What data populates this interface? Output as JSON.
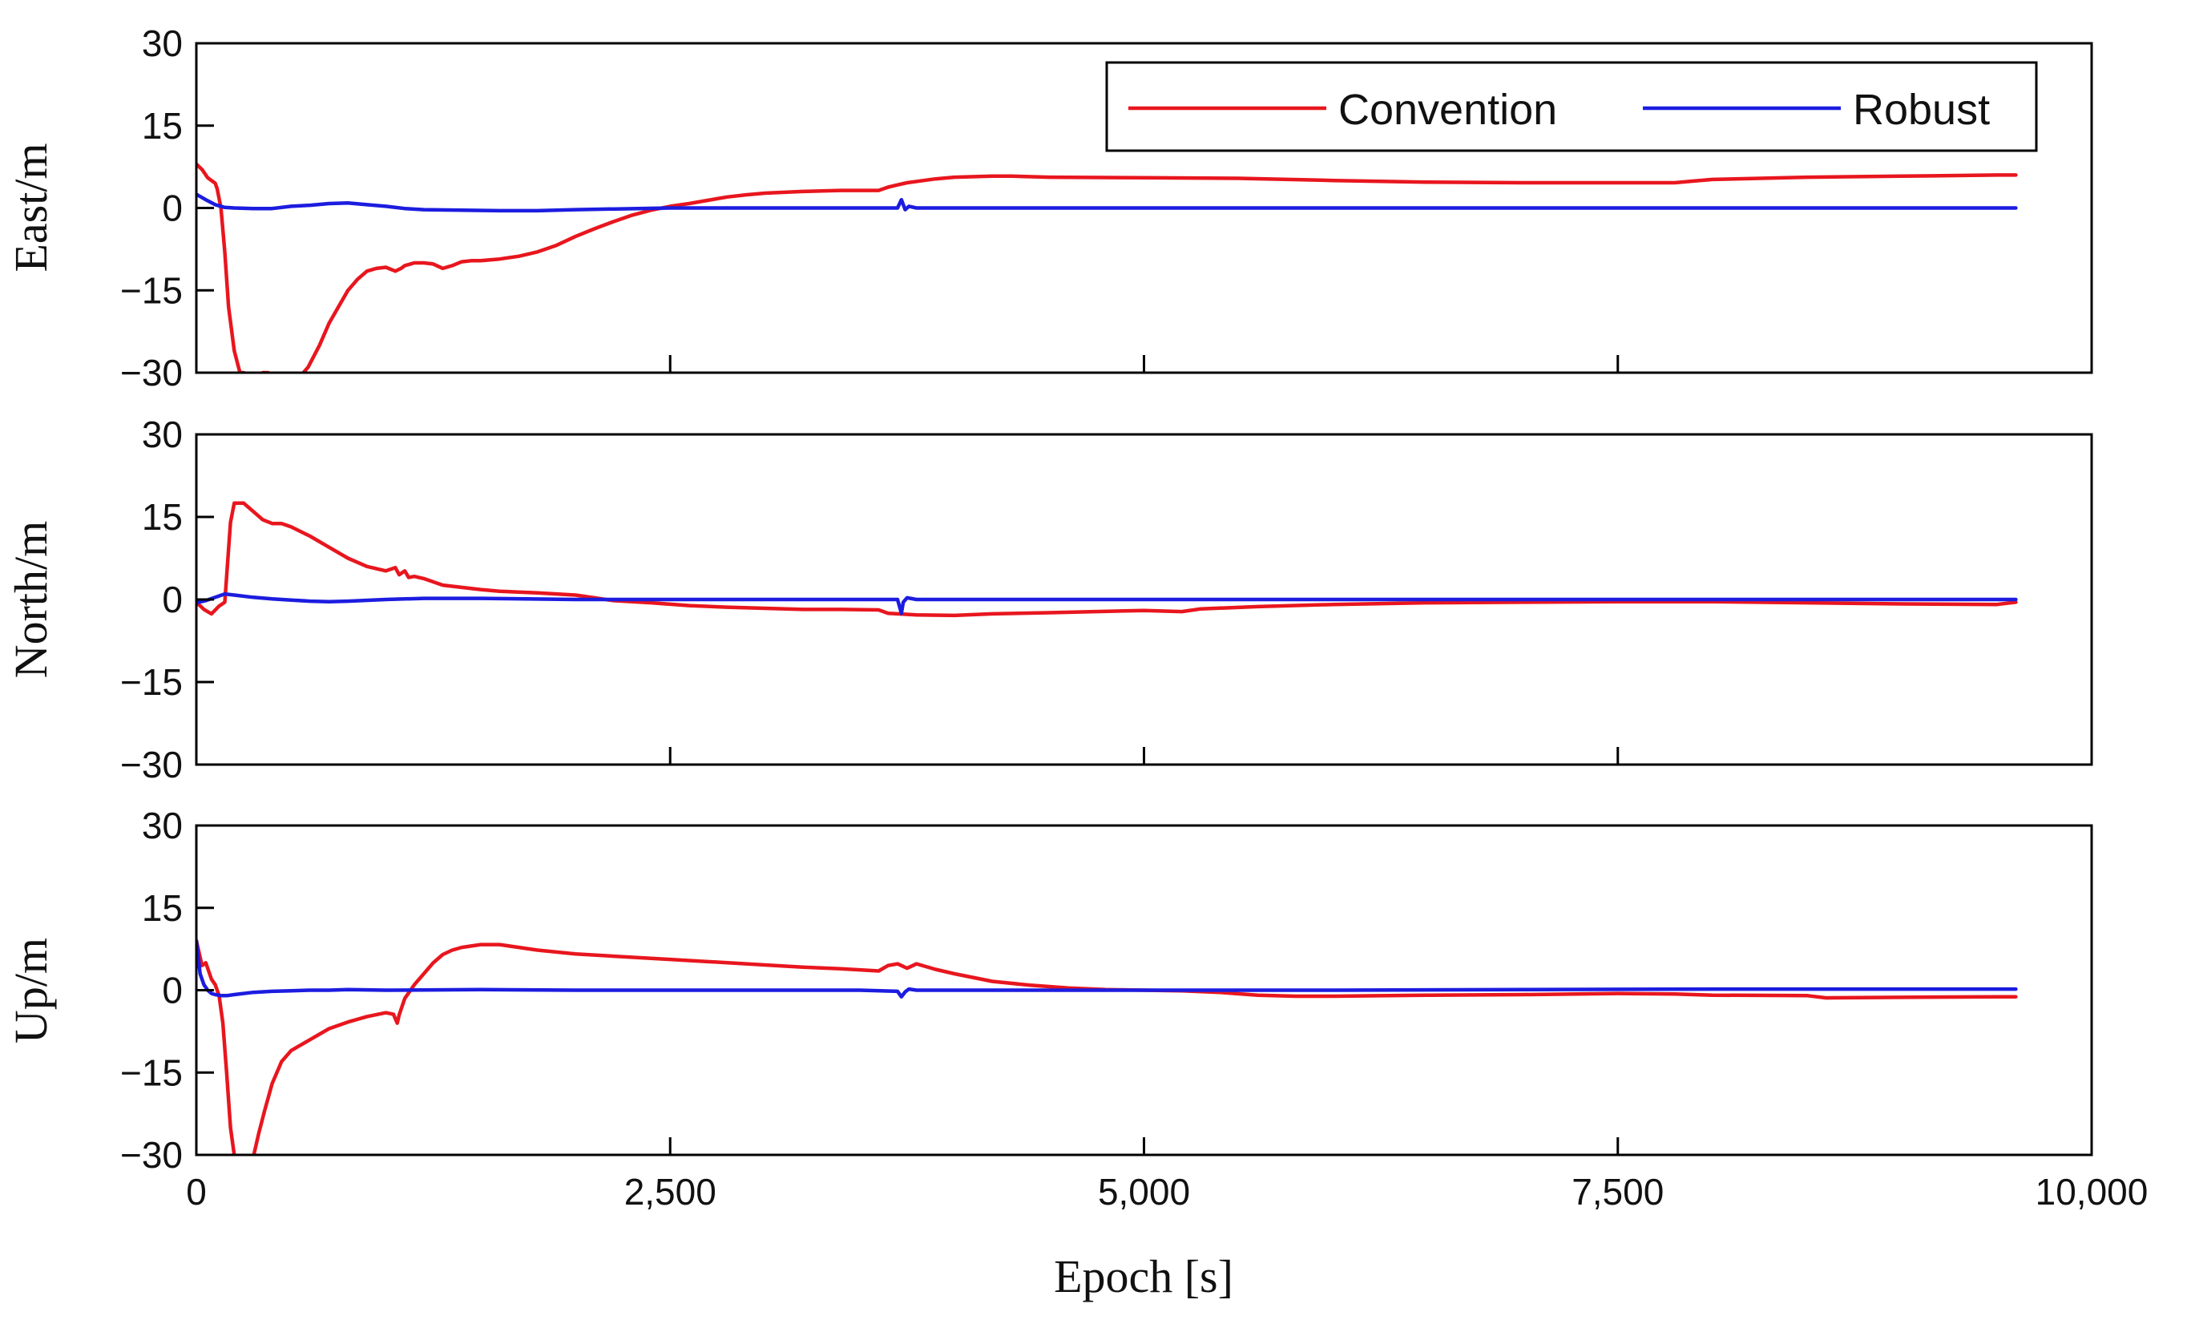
{
  "chart_data": {
    "type": "line",
    "xlabel": "Epoch [s]",
    "xlim": [
      0,
      10000
    ],
    "xticks": [
      0,
      2500,
      5000,
      7500,
      10000
    ],
    "xtick_labels": [
      "0",
      "2,500",
      "5,000",
      "7,500",
      "10,000"
    ],
    "legend": {
      "placement": "top-right of first panel",
      "entries": [
        {
          "name": "Convention",
          "color": "#e8161e"
        },
        {
          "name": "Robust",
          "color": "#1c1ce0"
        }
      ]
    },
    "panels": [
      {
        "ylabel": "East/m",
        "ylim": [
          -30,
          30
        ],
        "yticks": [
          -30,
          -15,
          0,
          15,
          30
        ],
        "ytick_labels": [
          "−30",
          "−15",
          "0",
          "15",
          "30"
        ],
        "series": [
          {
            "name": "Convention",
            "color": "#e8161e",
            "x": [
              0,
              30,
              60,
              100,
              110,
              130,
              150,
              170,
              200,
              230,
              250,
              280,
              320,
              350,
              380,
              400,
              450,
              500,
              540,
              590,
              650,
              700,
              750,
              800,
              850,
              900,
              950,
              1000,
              1050,
              1080,
              1100,
              1130,
              1150,
              1200,
              1250,
              1300,
              1350,
              1400,
              1450,
              1500,
              1600,
              1700,
              1800,
              1900,
              2000,
              2100,
              2200,
              2300,
              2400,
              2500,
              2600,
              2700,
              2800,
              2900,
              3000,
              3200,
              3400,
              3600,
              3650,
              3700,
              3750,
              3900,
              4000,
              4200,
              4300,
              4500,
              5000,
              5500,
              6000,
              6500,
              7000,
              7500,
              7800,
              7900,
              8000,
              8500,
              9000,
              9500,
              9600
            ],
            "values": [
              8,
              7,
              5.5,
              4.5,
              3.5,
              0,
              -8,
              -18,
              -26,
              -30,
              -30,
              -31,
              -31,
              -30,
              -30,
              -31,
              -30.5,
              -30.5,
              -31,
              -29,
              -25,
              -21,
              -18,
              -15,
              -13,
              -11.5,
              -11,
              -10.8,
              -11.5,
              -11,
              -10.5,
              -10.2,
              -10,
              -10,
              -10.2,
              -11,
              -10.5,
              -9.8,
              -9.6,
              -9.6,
              -9.3,
              -8.8,
              -8,
              -6.8,
              -5.2,
              -3.8,
              -2.5,
              -1.3,
              -0.4,
              0.3,
              0.8,
              1.4,
              2,
              2.4,
              2.7,
              3,
              3.2,
              3.2,
              3.8,
              4.2,
              4.6,
              5.3,
              5.6,
              5.8,
              5.8,
              5.6,
              5.5,
              5.4,
              5,
              4.7,
              4.6,
              4.6,
              4.6,
              4.9,
              5.2,
              5.6,
              5.8,
              6,
              6
            ]
          },
          {
            "name": "Robust",
            "color": "#1c1ce0",
            "x": [
              0,
              50,
              100,
              150,
              200,
              300,
              400,
              500,
              600,
              700,
              800,
              900,
              1000,
              1100,
              1200,
              1400,
              1600,
              1800,
              2000,
              2500,
              3000,
              3500,
              3700,
              3720,
              3740,
              3760,
              3800,
              4000,
              5000,
              6000,
              7000,
              8000,
              9000,
              9600
            ],
            "values": [
              2.5,
              1.5,
              0.6,
              0.1,
              0,
              -0.1,
              -0.1,
              0.3,
              0.5,
              0.8,
              0.9,
              0.6,
              0.3,
              -0.1,
              -0.3,
              -0.4,
              -0.5,
              -0.5,
              -0.3,
              0,
              0,
              0,
              0,
              1.5,
              -0.3,
              0.3,
              0,
              0,
              0,
              0,
              0,
              0,
              0,
              0
            ]
          }
        ]
      },
      {
        "ylabel": "North/m",
        "ylim": [
          -30,
          30
        ],
        "yticks": [
          -30,
          -15,
          0,
          15,
          30
        ],
        "ytick_labels": [
          "−30",
          "−15",
          "0",
          "15",
          "30"
        ],
        "series": [
          {
            "name": "Convention",
            "color": "#e8161e",
            "x": [
              0,
              40,
              80,
              120,
              150,
              180,
              200,
              250,
              300,
              350,
              400,
              450,
              500,
              600,
              700,
              800,
              900,
              1000,
              1050,
              1070,
              1100,
              1120,
              1150,
              1200,
              1250,
              1300,
              1400,
              1500,
              1600,
              1800,
              2000,
              2100,
              2200,
              2400,
              2600,
              2800,
              3000,
              3200,
              3400,
              3600,
              3650,
              3700,
              3800,
              4000,
              4200,
              4500,
              5000,
              5200,
              5300,
              5600,
              6000,
              6500,
              7000,
              7500,
              8000,
              8500,
              9000,
              9500,
              9600
            ],
            "values": [
              -0.5,
              -1.8,
              -2.6,
              -1.2,
              -0.5,
              14,
              17.5,
              17.5,
              16,
              14.5,
              13.8,
              13.8,
              13.2,
              11.5,
              9.5,
              7.5,
              6,
              5.2,
              5.8,
              4.5,
              5.2,
              4,
              4.2,
              3.8,
              3.2,
              2.6,
              2.2,
              1.8,
              1.5,
              1.2,
              0.8,
              0.3,
              -0.2,
              -0.6,
              -1.1,
              -1.4,
              -1.6,
              -1.8,
              -1.8,
              -1.9,
              -2.5,
              -2.6,
              -2.8,
              -2.9,
              -2.6,
              -2.4,
              -2,
              -2.2,
              -1.7,
              -1.3,
              -0.9,
              -0.6,
              -0.5,
              -0.4,
              -0.4,
              -0.6,
              -0.8,
              -0.9,
              -0.5
            ]
          },
          {
            "name": "Robust",
            "color": "#1c1ce0",
            "x": [
              0,
              50,
              100,
              150,
              200,
              300,
              400,
              500,
              600,
              700,
              800,
              1000,
              1200,
              1500,
              2000,
              2500,
              3000,
              3500,
              3700,
              3720,
              3730,
              3750,
              3800,
              4000,
              5000,
              6000,
              7000,
              8000,
              9000,
              9600
            ],
            "values": [
              -0.6,
              -0.2,
              0.4,
              1,
              0.8,
              0.4,
              0.1,
              -0.1,
              -0.3,
              -0.4,
              -0.3,
              0,
              0.2,
              0.2,
              0,
              0,
              0,
              0,
              0,
              -2.5,
              -0.5,
              0.3,
              0,
              0,
              0,
              0,
              0,
              0,
              0,
              0
            ]
          }
        ]
      },
      {
        "ylabel": "Up/m",
        "ylim": [
          -30,
          30
        ],
        "yticks": [
          -30,
          -15,
          0,
          15,
          30
        ],
        "ytick_labels": [
          "−30",
          "−15",
          "0",
          "15",
          "30"
        ],
        "series": [
          {
            "name": "Convention",
            "color": "#e8161e",
            "x": [
              0,
              30,
              50,
              80,
              100,
              120,
              140,
              160,
              180,
              200,
              230,
              260,
              280,
              300,
              330,
              360,
              400,
              450,
              500,
              600,
              700,
              800,
              900,
              1000,
              1040,
              1050,
              1060,
              1070,
              1100,
              1150,
              1200,
              1250,
              1300,
              1350,
              1400,
              1500,
              1600,
              1800,
              2000,
              2500,
              3000,
              3200,
              3400,
              3600,
              3650,
              3700,
              3750,
              3800,
              3900,
              4000,
              4200,
              4400,
              4600,
              4800,
              5000,
              5200,
              5400,
              5600,
              5800,
              6000,
              6500,
              7000,
              7500,
              7800,
              8000,
              8500,
              8600,
              9000,
              9500,
              9600
            ],
            "values": [
              9,
              4.5,
              5,
              2,
              1,
              -1,
              -6,
              -15,
              -25,
              -30,
              -31,
              -31,
              -31,
              -30.5,
              -26,
              -22,
              -17,
              -13,
              -11,
              -9,
              -7,
              -5.8,
              -4.8,
              -4.1,
              -4.4,
              -5.2,
              -6,
              -4.5,
              -1.5,
              1,
              3,
              5,
              6.5,
              7.3,
              7.8,
              8.3,
              8.3,
              7.3,
              6.6,
              5.6,
              4.6,
              4.2,
              3.9,
              3.5,
              4.5,
              4.8,
              4,
              4.8,
              3.8,
              3,
              1.6,
              0.9,
              0.4,
              0.1,
              0,
              -0.1,
              -0.4,
              -0.9,
              -1.1,
              -1.1,
              -0.9,
              -0.8,
              -0.6,
              -0.7,
              -0.9,
              -1,
              -1.4,
              -1.3,
              -1.2,
              -1.2
            ]
          },
          {
            "name": "Robust",
            "color": "#1c1ce0",
            "x": [
              0,
              20,
              40,
              60,
              80,
              100,
              130,
              160,
              200,
              300,
              400,
              500,
              600,
              700,
              800,
              1000,
              1500,
              2000,
              2500,
              3000,
              3500,
              3700,
              3720,
              3740,
              3760,
              3800,
              4000,
              5000,
              6000,
              7000,
              8000,
              9000,
              9600
            ],
            "values": [
              9,
              3,
              1,
              0,
              -0.6,
              -0.8,
              -1,
              -1,
              -0.8,
              -0.4,
              -0.2,
              -0.1,
              0,
              0,
              0.1,
              0,
              0.1,
              0,
              0,
              0,
              0,
              -0.2,
              -1.2,
              -0.3,
              0.2,
              0,
              0,
              0,
              0,
              0.1,
              0.2,
              0.2,
              0.2
            ]
          }
        ]
      }
    ]
  }
}
